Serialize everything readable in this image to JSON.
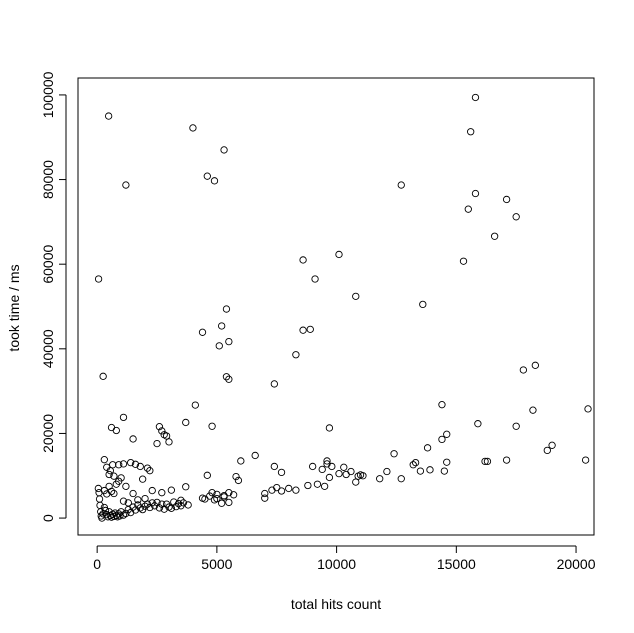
{
  "chart_data": {
    "type": "scatter",
    "title": "",
    "xlabel": "total hits count",
    "ylabel": "took time / ms",
    "xlim": [
      -800,
      20750
    ],
    "ylim": [
      -4000,
      104000
    ],
    "xticks": [
      0,
      5000,
      10000,
      15000,
      20000
    ],
    "yticks": [
      0,
      20000,
      40000,
      60000,
      80000,
      100000
    ],
    "xtick_labels": [
      "0",
      "5000",
      "10000",
      "15000",
      "20000"
    ],
    "ytick_labels": [
      "0",
      "20000",
      "40000",
      "60000",
      "80000",
      "100000"
    ],
    "grid": false,
    "marker": "open-circle",
    "series": [
      {
        "name": "",
        "points": [
          [
            60,
            56500
          ],
          [
            250,
            33500
          ],
          [
            480,
            95000
          ],
          [
            1200,
            78700
          ],
          [
            4000,
            92200
          ],
          [
            4600,
            80800
          ],
          [
            4900,
            79700
          ],
          [
            5300,
            87000
          ],
          [
            8600,
            61000
          ],
          [
            9100,
            56500
          ],
          [
            10100,
            62300
          ],
          [
            10800,
            52400
          ],
          [
            12700,
            78700
          ],
          [
            13600,
            50500
          ],
          [
            15300,
            60700
          ],
          [
            15500,
            73000
          ],
          [
            15600,
            91300
          ],
          [
            15800,
            99400
          ],
          [
            15800,
            76700
          ],
          [
            16600,
            66600
          ],
          [
            17100,
            75300
          ],
          [
            17500,
            71200
          ],
          [
            8300,
            38600
          ],
          [
            8600,
            44400
          ],
          [
            8900,
            44600
          ],
          [
            4400,
            43900
          ],
          [
            5200,
            45400
          ],
          [
            5400,
            49400
          ],
          [
            5100,
            40700
          ],
          [
            5500,
            41700
          ],
          [
            5400,
            33400
          ],
          [
            5500,
            32800
          ],
          [
            7400,
            31700
          ],
          [
            14400,
            26800
          ],
          [
            14400,
            18600
          ],
          [
            14600,
            19800
          ],
          [
            9700,
            21300
          ],
          [
            12400,
            15200
          ],
          [
            13800,
            16600
          ],
          [
            17500,
            21700
          ],
          [
            15900,
            22300
          ],
          [
            17800,
            35000
          ],
          [
            18300,
            36100
          ],
          [
            18200,
            25500
          ],
          [
            20500,
            25800
          ],
          [
            20400,
            13700
          ],
          [
            18800,
            16000
          ],
          [
            19000,
            17200
          ],
          [
            17100,
            13700
          ],
          [
            16200,
            13400
          ],
          [
            16300,
            13400
          ],
          [
            4100,
            26700
          ],
          [
            3700,
            22600
          ],
          [
            4800,
            21700
          ],
          [
            2600,
            21600
          ],
          [
            2700,
            20600
          ],
          [
            2800,
            19700
          ],
          [
            2900,
            19400
          ],
          [
            3000,
            18000
          ],
          [
            2500,
            17600
          ],
          [
            1100,
            23800
          ],
          [
            600,
            21400
          ],
          [
            800,
            20700
          ],
          [
            1500,
            18700
          ],
          [
            50,
            7000
          ],
          [
            80,
            6000
          ],
          [
            100,
            4500
          ],
          [
            120,
            3000
          ],
          [
            150,
            1500
          ],
          [
            170,
            500
          ],
          [
            200,
            0
          ],
          [
            250,
            1000
          ],
          [
            300,
            2500
          ],
          [
            350,
            1800
          ],
          [
            400,
            800
          ],
          [
            450,
            300
          ],
          [
            500,
            1500
          ],
          [
            550,
            600
          ],
          [
            600,
            200
          ],
          [
            650,
            900
          ],
          [
            700,
            400
          ],
          [
            750,
            1200
          ],
          [
            800,
            600
          ],
          [
            850,
            300
          ],
          [
            900,
            1000
          ],
          [
            950,
            500
          ],
          [
            1000,
            1500
          ],
          [
            1100,
            700
          ],
          [
            1200,
            1100
          ],
          [
            1300,
            2000
          ],
          [
            1400,
            1300
          ],
          [
            1500,
            2600
          ],
          [
            1600,
            1900
          ],
          [
            1700,
            3100
          ],
          [
            1800,
            2400
          ],
          [
            1900,
            2000
          ],
          [
            2000,
            2800
          ],
          [
            2100,
            3300
          ],
          [
            2200,
            2500
          ],
          [
            2300,
            3600
          ],
          [
            2400,
            2900
          ],
          [
            2500,
            3700
          ],
          [
            2600,
            2400
          ],
          [
            2700,
            3300
          ],
          [
            2800,
            2100
          ],
          [
            3000,
            2600
          ],
          [
            3200,
            3800
          ],
          [
            3300,
            2700
          ],
          [
            3400,
            3400
          ],
          [
            3500,
            2900
          ],
          [
            3600,
            3600
          ],
          [
            3800,
            3100
          ],
          [
            300,
            13800
          ],
          [
            400,
            12000
          ],
          [
            500,
            10300
          ],
          [
            550,
            11200
          ],
          [
            650,
            12600
          ],
          [
            700,
            9900
          ],
          [
            900,
            12600
          ],
          [
            1100,
            12800
          ],
          [
            1400,
            13100
          ],
          [
            1600,
            12700
          ],
          [
            1900,
            9200
          ],
          [
            2100,
            11800
          ],
          [
            2200,
            11200
          ],
          [
            1800,
            12200
          ],
          [
            300,
            6500
          ],
          [
            400,
            5700
          ],
          [
            500,
            7500
          ],
          [
            600,
            6300
          ],
          [
            700,
            5800
          ],
          [
            800,
            8000
          ],
          [
            900,
            8700
          ],
          [
            1000,
            9500
          ],
          [
            1200,
            7500
          ],
          [
            1500,
            5800
          ],
          [
            1700,
            4300
          ],
          [
            2000,
            4600
          ],
          [
            2300,
            6500
          ],
          [
            2700,
            6000
          ],
          [
            3100,
            6600
          ],
          [
            3700,
            7400
          ],
          [
            4500,
            4500
          ],
          [
            4700,
            5200
          ],
          [
            4900,
            4300
          ],
          [
            5000,
            4600
          ],
          [
            5200,
            3500
          ],
          [
            5300,
            5000
          ],
          [
            5500,
            6000
          ],
          [
            5700,
            5500
          ],
          [
            4600,
            10100
          ],
          [
            5800,
            9800
          ],
          [
            5900,
            8900
          ],
          [
            6000,
            13500
          ],
          [
            6600,
            14800
          ],
          [
            7000,
            4700
          ],
          [
            7000,
            5800
          ],
          [
            7300,
            6600
          ],
          [
            7400,
            12200
          ],
          [
            7500,
            7200
          ],
          [
            7700,
            6400
          ],
          [
            7700,
            10800
          ],
          [
            8000,
            7000
          ],
          [
            8300,
            6600
          ],
          [
            8800,
            7700
          ],
          [
            9000,
            12200
          ],
          [
            9200,
            8000
          ],
          [
            9400,
            11500
          ],
          [
            9500,
            7500
          ],
          [
            9600,
            12800
          ],
          [
            9600,
            13500
          ],
          [
            9700,
            9600
          ],
          [
            9800,
            12200
          ],
          [
            10100,
            10500
          ],
          [
            10300,
            12000
          ],
          [
            10400,
            10300
          ],
          [
            10600,
            11000
          ],
          [
            10800,
            8500
          ],
          [
            10900,
            9900
          ],
          [
            11000,
            10200
          ],
          [
            11100,
            10000
          ],
          [
            11800,
            9300
          ],
          [
            12100,
            11000
          ],
          [
            12700,
            9300
          ],
          [
            13200,
            12600
          ],
          [
            13300,
            13100
          ],
          [
            13500,
            11100
          ],
          [
            13900,
            11400
          ],
          [
            14500,
            11100
          ],
          [
            14600,
            13200
          ],
          [
            4800,
            6000
          ],
          [
            5000,
            5600
          ],
          [
            5300,
            5300
          ],
          [
            5500,
            3700
          ],
          [
            4400,
            4700
          ],
          [
            2900,
            3300
          ],
          [
            3100,
            2300
          ],
          [
            3500,
            4200
          ],
          [
            1300,
            3600
          ],
          [
            1100,
            4000
          ]
        ]
      }
    ]
  }
}
